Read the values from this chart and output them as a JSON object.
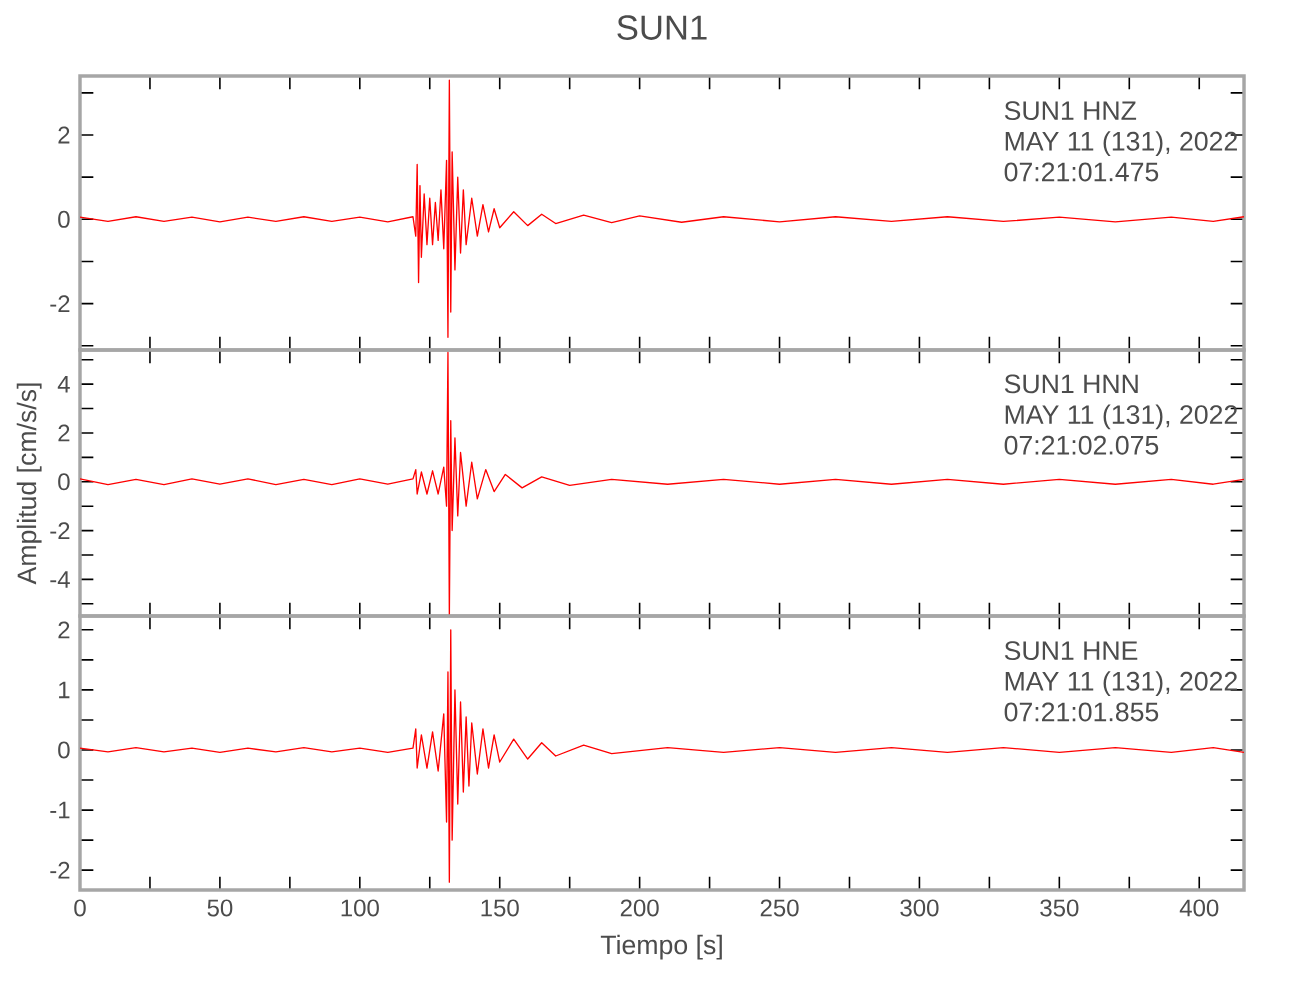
{
  "chart_data": [
    {
      "type": "line",
      "title": "SUN1",
      "annotations": [
        "SUN1   HNZ",
        "MAY 11 (131), 2022",
        "07:21:01.475"
      ],
      "xlim": [
        0,
        416
      ],
      "ylim": [
        -3.1,
        3.4
      ],
      "tick_labels": "y",
      "xticks": [
        0,
        {
          "value": 25,
          "label": null
        },
        50,
        {
          "value": 75,
          "label": null
        },
        100,
        {
          "value": 125,
          "label": null
        },
        150,
        {
          "value": 175,
          "label": null
        },
        200,
        {
          "value": 225,
          "label": null
        },
        250,
        {
          "value": 275,
          "label": null
        },
        300,
        {
          "value": 325,
          "label": null
        },
        350,
        {
          "value": 375,
          "label": null
        },
        400
      ],
      "yticks": [
        {
          "value": -3,
          "label": null
        },
        -2,
        {
          "value": -1,
          "label": null
        },
        0,
        {
          "value": 1,
          "label": null
        },
        2,
        {
          "value": 3,
          "label": null
        }
      ],
      "x": [
        0,
        10,
        20,
        30,
        40,
        50,
        60,
        70,
        80,
        90,
        100,
        110,
        119,
        120,
        120.5,
        121,
        121.5,
        122,
        123,
        124,
        125,
        126,
        127,
        128,
        129,
        130,
        131,
        131.5,
        132,
        132.5,
        133,
        134,
        135,
        136,
        137,
        138,
        140,
        142,
        144,
        146,
        148,
        150,
        155,
        160,
        165,
        170,
        180,
        190,
        200,
        215,
        230,
        250,
        270,
        290,
        310,
        330,
        350,
        370,
        390,
        405,
        416
      ],
      "series": [
        {
          "color": "#ff0000",
          "values": [
            0.05,
            -0.05,
            0.06,
            -0.05,
            0.05,
            -0.06,
            0.05,
            -0.05,
            0.06,
            -0.05,
            0.05,
            -0.06,
            0.06,
            -0.4,
            1.3,
            -1.5,
            0.8,
            -0.9,
            0.6,
            -0.6,
            0.5,
            -0.6,
            0.4,
            -0.5,
            0.7,
            -0.7,
            1.4,
            -2.8,
            3.3,
            -2.2,
            1.6,
            -1.2,
            1.0,
            -0.8,
            0.7,
            -0.6,
            0.5,
            -0.4,
            0.35,
            -0.3,
            0.25,
            -0.2,
            0.18,
            -0.15,
            0.12,
            -0.1,
            0.1,
            -0.08,
            0.08,
            -0.07,
            0.06,
            -0.06,
            0.06,
            -0.05,
            0.06,
            -0.05,
            0.05,
            -0.06,
            0.05,
            -0.05,
            0.06
          ]
        }
      ]
    },
    {
      "type": "line",
      "ylabel": "Amplitud [cm/s/s]",
      "annotations": [
        "SUN1   HNN",
        "MAY 11 (131), 2022",
        "07:21:02.075"
      ],
      "xlim": [
        0,
        416
      ],
      "ylim": [
        -5.5,
        5.4
      ],
      "tick_labels": "y",
      "xticks": [
        0,
        {
          "value": 25,
          "label": null
        },
        50,
        {
          "value": 75,
          "label": null
        },
        100,
        {
          "value": 125,
          "label": null
        },
        150,
        {
          "value": 175,
          "label": null
        },
        200,
        {
          "value": 225,
          "label": null
        },
        250,
        {
          "value": 275,
          "label": null
        },
        300,
        {
          "value": 325,
          "label": null
        },
        350,
        {
          "value": 375,
          "label": null
        },
        400
      ],
      "yticks": [
        {
          "value": -5,
          "label": null
        },
        -4,
        {
          "value": -3,
          "label": null
        },
        -2,
        {
          "value": -1,
          "label": null
        },
        0,
        {
          "value": 1,
          "label": null
        },
        2,
        {
          "value": 3,
          "label": null
        },
        4,
        {
          "value": 5,
          "label": null
        }
      ],
      "x": [
        0,
        10,
        20,
        30,
        40,
        50,
        60,
        70,
        80,
        90,
        100,
        110,
        119,
        120,
        120.5,
        122,
        124,
        126,
        128,
        130,
        131,
        131.5,
        132,
        132.5,
        133,
        134,
        135,
        136,
        138,
        140,
        142,
        145,
        148,
        152,
        158,
        165,
        175,
        190,
        210,
        230,
        250,
        270,
        290,
        310,
        330,
        350,
        370,
        390,
        405,
        416
      ],
      "series": [
        {
          "color": "#ff0000",
          "values": [
            0.12,
            -0.12,
            0.1,
            -0.12,
            0.12,
            -0.1,
            0.12,
            -0.12,
            0.1,
            -0.12,
            0.12,
            -0.1,
            0.12,
            0.5,
            -0.5,
            0.4,
            -0.5,
            0.45,
            -0.5,
            0.6,
            -1.0,
            5.3,
            -5.5,
            2.5,
            -2.0,
            1.8,
            -1.4,
            1.2,
            -1.0,
            0.8,
            -0.7,
            0.5,
            -0.4,
            0.3,
            -0.25,
            0.2,
            -0.15,
            0.1,
            -0.1,
            0.1,
            -0.1,
            0.1,
            -0.1,
            0.1,
            -0.1,
            0.1,
            -0.1,
            0.1,
            -0.1,
            0.1
          ]
        }
      ]
    },
    {
      "type": "line",
      "xlabel": "Tiempo [s]",
      "annotations": [
        "SUN1   HNE",
        "MAY 11 (131), 2022",
        "07:21:01.855"
      ],
      "xlim": [
        0,
        416
      ],
      "ylim": [
        -2.33,
        2.23
      ],
      "xticks": [
        0,
        {
          "value": 25,
          "label": null
        },
        50,
        {
          "value": 75,
          "label": null
        },
        100,
        {
          "value": 125,
          "label": null
        },
        150,
        {
          "value": 175,
          "label": null
        },
        200,
        {
          "value": 225,
          "label": null
        },
        250,
        {
          "value": 275,
          "label": null
        },
        300,
        {
          "value": 325,
          "label": null
        },
        350,
        {
          "value": 375,
          "label": null
        },
        400
      ],
      "yticks": [
        -2,
        {
          "value": -1.5,
          "label": null
        },
        -1,
        {
          "value": -0.5,
          "label": null
        },
        0,
        {
          "value": 0.5,
          "label": null
        },
        1,
        {
          "value": 1.5,
          "label": null
        },
        2
      ],
      "x": [
        0,
        10,
        20,
        30,
        40,
        50,
        60,
        70,
        80,
        90,
        100,
        110,
        119,
        120,
        120.5,
        122,
        124,
        126,
        128,
        130,
        131,
        131.5,
        132,
        132.5,
        133,
        134,
        135,
        136,
        137,
        138,
        139,
        140,
        142,
        144,
        146,
        148,
        150,
        155,
        160,
        165,
        170,
        180,
        190,
        210,
        230,
        250,
        270,
        290,
        310,
        330,
        350,
        370,
        390,
        405,
        416
      ],
      "series": [
        {
          "color": "#ff0000",
          "values": [
            0.03,
            -0.03,
            0.04,
            -0.03,
            0.03,
            -0.04,
            0.03,
            -0.03,
            0.04,
            -0.03,
            0.03,
            -0.04,
            0.03,
            0.35,
            -0.3,
            0.25,
            -0.3,
            0.3,
            -0.35,
            0.6,
            -1.2,
            1.3,
            -2.2,
            2.0,
            -1.5,
            1.0,
            -0.9,
            0.8,
            -0.7,
            0.55,
            -0.6,
            0.45,
            -0.4,
            0.35,
            -0.3,
            0.25,
            -0.2,
            0.18,
            -0.15,
            0.12,
            -0.1,
            0.08,
            -0.06,
            0.04,
            -0.04,
            0.04,
            -0.04,
            0.04,
            -0.04,
            0.04,
            -0.04,
            0.04,
            -0.04,
            0.04,
            -0.04
          ]
        }
      ]
    }
  ]
}
